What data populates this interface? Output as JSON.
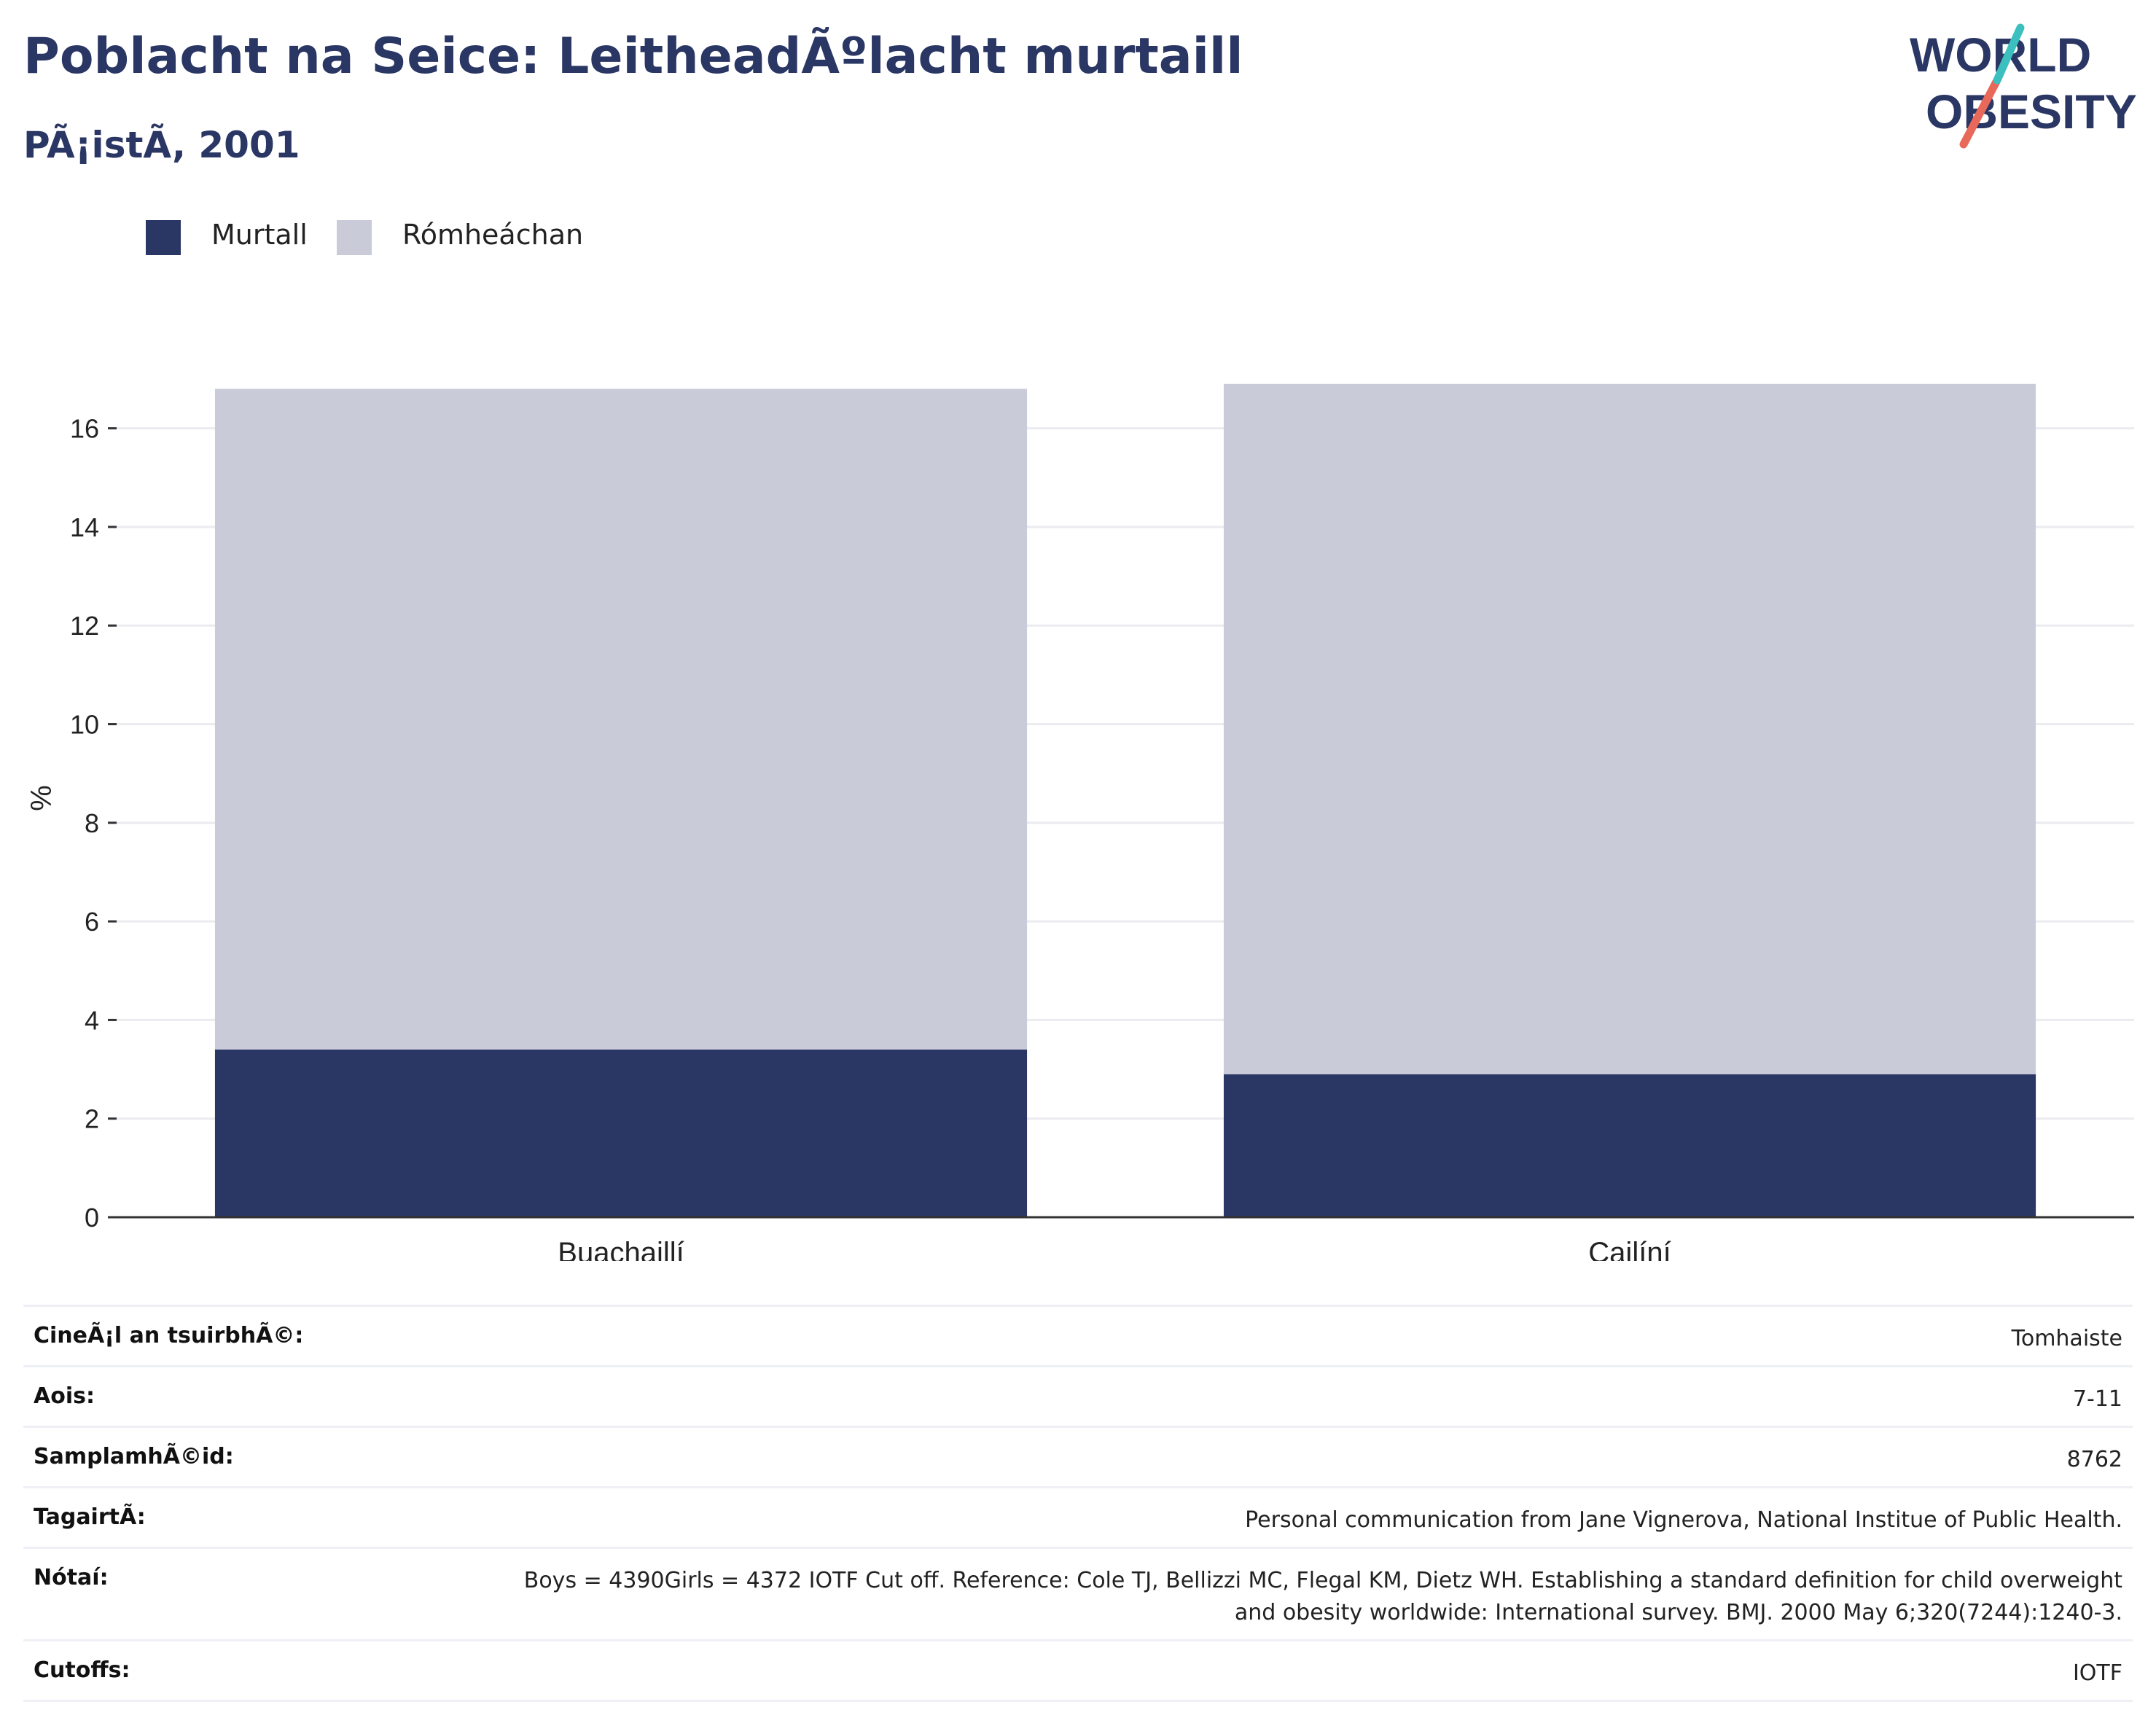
{
  "header": {
    "title": "Poblacht na Seice: LeitheadÃºlacht murtaill",
    "subtitle": "PÃ¡istÃ, 2001"
  },
  "logo": {
    "line1": "WORLD",
    "line2": "OBESITY",
    "colors": {
      "text": "#2a3663",
      "stroke_red": "#e8685a",
      "stroke_teal": "#3bbfbf"
    }
  },
  "legend": {
    "items": [
      {
        "label": "Murtall",
        "color": "#2a3663"
      },
      {
        "label": "Rómheáchan",
        "color": "#c9ccd8"
      }
    ]
  },
  "chart_data": {
    "type": "bar",
    "stacked": true,
    "categories": [
      "Buachaillí",
      "Cailíní"
    ],
    "series": [
      {
        "name": "Murtall",
        "values": [
          3.4,
          2.9
        ],
        "color": "#2a3663"
      },
      {
        "name": "Rómheáchan",
        "values": [
          13.4,
          14.0
        ],
        "color": "#c9ccd8"
      }
    ],
    "ylabel": "%",
    "xlabel": "",
    "ylim": [
      0,
      17
    ],
    "yticks": [
      0,
      2,
      4,
      6,
      8,
      10,
      12,
      14,
      16
    ],
    "grid": true,
    "legend_position": "top-left"
  },
  "info": {
    "rows": [
      {
        "label": "CineÃ¡l an tsuirbhÃ©:",
        "value": "Tomhaiste"
      },
      {
        "label": "Aois:",
        "value": "7-11"
      },
      {
        "label": "SamplamhÃ©id:",
        "value": "8762"
      },
      {
        "label": "TagairtÃ:",
        "value": "Personal communication from Jane Vignerova, National Institue of Public Health."
      },
      {
        "label": "Nótaí:",
        "value": "Boys = 4390Girls = 4372 IOTF Cut off. Reference: Cole TJ, Bellizzi MC, Flegal KM, Dietz WH. Establishing a standard definition for child overweight and obesity worldwide: International survey. BMJ. 2000 May 6;320(7244):1240-3."
      },
      {
        "label": "Cutoffs:",
        "value": "IOTF"
      }
    ]
  }
}
